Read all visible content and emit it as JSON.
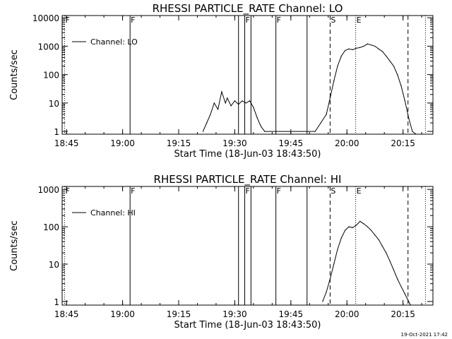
{
  "footer_timestamp": "19-Oct-2021 17:42",
  "chart_data": [
    {
      "type": "line",
      "title": "RHESSI PARTICLE_RATE Channel: LO",
      "xlabel": "Start Time (18-Jun-03 18:43:50)",
      "ylabel": "Counts/sec",
      "legend_label": "Channel: LO",
      "legend_position": "top-left",
      "y_scale": "log",
      "ylim": [
        0.8,
        12000
      ],
      "xlim": [
        "18:43:50",
        "20:23:00"
      ],
      "xticks": [
        "18:45",
        "19:00",
        "19:15",
        "19:30",
        "19:45",
        "20:00",
        "20:15"
      ],
      "yticks": [
        "1",
        "10",
        "100",
        "1000",
        "10000"
      ],
      "grid": false,
      "markers": [
        {
          "time": "18:44:30",
          "label": "F",
          "style": "dotted"
        },
        {
          "time": "19:02:00",
          "label": "F",
          "style": "solid"
        },
        {
          "time": "19:31:00",
          "label": "",
          "style": "solid"
        },
        {
          "time": "19:32:40",
          "label": "F",
          "style": "solid"
        },
        {
          "time": "19:34:20",
          "label": "",
          "style": "solid"
        },
        {
          "time": "19:41:00",
          "label": "F",
          "style": "solid"
        },
        {
          "time": "19:49:20",
          "label": "",
          "style": "solid"
        },
        {
          "time": "19:55:30",
          "label": "S",
          "style": "dashed"
        },
        {
          "time": "20:02:20",
          "label": "E",
          "style": "dotted"
        },
        {
          "time": "20:16:20",
          "label": "",
          "style": "dashed"
        },
        {
          "time": "20:21:00",
          "label": "",
          "style": "dotted"
        }
      ],
      "series": [
        {
          "name": "Channel: LO",
          "x": [
            "19:21:30",
            "19:22:30",
            "19:23:30",
            "19:24:30",
            "19:25:30",
            "19:26:30",
            "19:27:30",
            "19:28:00",
            "19:29:00",
            "19:30:00",
            "19:31:00",
            "19:32:00",
            "19:33:00",
            "19:34:00",
            "19:35:00",
            "19:36:00",
            "19:37:00",
            "19:38:00",
            "19:51:30",
            "19:53:00",
            "19:54:30",
            "19:55:30",
            "19:56:30",
            "19:57:30",
            "19:58:30",
            "19:59:30",
            "20:00:30",
            "20:01:30",
            "20:02:30",
            "20:03:30",
            "20:04:30",
            "20:05:30",
            "20:06:30",
            "20:07:30",
            "20:08:30",
            "20:09:30",
            "20:10:30",
            "20:11:30",
            "20:12:30",
            "20:13:30",
            "20:14:30",
            "20:15:30",
            "20:16:30",
            "20:17:30",
            "20:18:30"
          ],
          "y": [
            1,
            2,
            4,
            10,
            6,
            25,
            10,
            15,
            8,
            12,
            9,
            12,
            10,
            12,
            7,
            3,
            1.5,
            1,
            1,
            2,
            4,
            15,
            60,
            200,
            450,
            700,
            800,
            750,
            850,
            900,
            1000,
            1200,
            1100,
            1000,
            800,
            650,
            450,
            300,
            200,
            100,
            40,
            12,
            3,
            1,
            0.8
          ]
        }
      ]
    },
    {
      "type": "line",
      "title": "RHESSI PARTICLE_RATE Channel: HI",
      "xlabel": "Start Time (18-Jun-03 18:43:50)",
      "ylabel": "Counts/sec",
      "legend_label": "Channel: HI",
      "legend_position": "top-left",
      "y_scale": "log",
      "ylim": [
        0.8,
        1200
      ],
      "xlim": [
        "18:43:50",
        "20:23:00"
      ],
      "xticks": [
        "18:45",
        "19:00",
        "19:15",
        "19:30",
        "19:45",
        "20:00",
        "20:15"
      ],
      "yticks": [
        "1",
        "10",
        "100",
        "1000"
      ],
      "grid": false,
      "markers": [
        {
          "time": "18:44:30",
          "label": "F",
          "style": "dotted"
        },
        {
          "time": "19:02:00",
          "label": "F",
          "style": "solid"
        },
        {
          "time": "19:31:00",
          "label": "",
          "style": "solid"
        },
        {
          "time": "19:32:40",
          "label": "F",
          "style": "solid"
        },
        {
          "time": "19:34:20",
          "label": "",
          "style": "solid"
        },
        {
          "time": "19:41:00",
          "label": "F",
          "style": "solid"
        },
        {
          "time": "19:49:20",
          "label": "",
          "style": "solid"
        },
        {
          "time": "19:55:30",
          "label": "S",
          "style": "dashed"
        },
        {
          "time": "20:02:20",
          "label": "E",
          "style": "dotted"
        },
        {
          "time": "20:16:20",
          "label": "",
          "style": "dashed"
        },
        {
          "time": "20:21:00",
          "label": "",
          "style": "dotted"
        }
      ],
      "series": [
        {
          "name": "Channel: HI",
          "x": [
            "19:53:30",
            "19:54:30",
            "19:55:30",
            "19:56:30",
            "19:57:30",
            "19:58:30",
            "19:59:30",
            "20:00:30",
            "20:01:30",
            "20:02:30",
            "20:03:30",
            "20:04:30",
            "20:05:30",
            "20:06:30",
            "20:07:30",
            "20:08:30",
            "20:09:30",
            "20:10:30",
            "20:11:30",
            "20:12:30",
            "20:13:30",
            "20:14:30",
            "20:15:30",
            "20:16:30",
            "20:17:00"
          ],
          "y": [
            1,
            1.8,
            4,
            10,
            25,
            50,
            80,
            100,
            95,
            110,
            140,
            120,
            100,
            80,
            60,
            45,
            30,
            20,
            12,
            7,
            4,
            2.5,
            1.6,
            1,
            0.8
          ]
        }
      ]
    }
  ]
}
